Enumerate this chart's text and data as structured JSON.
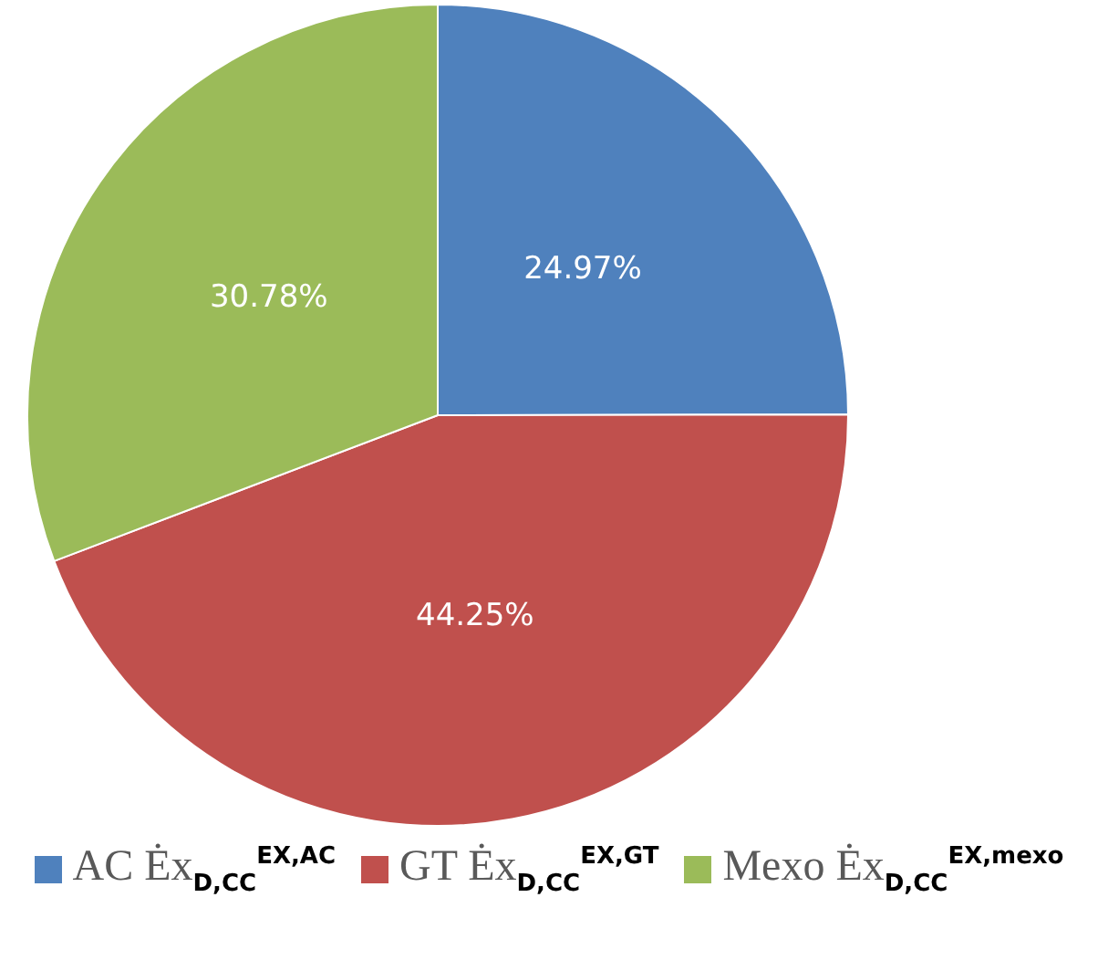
{
  "chart_data": {
    "type": "pie",
    "categories": [
      "AC Ėx$_{D,CC}$$^{EX,AC}$",
      "GT Ėx$_{D,CC}$$^{EX,GT}$",
      "Mexo Ėx$_{D,CC}$$^{EX,mexo}$"
    ],
    "values": [
      24.97,
      44.25,
      30.78
    ],
    "colors": [
      "#4f81bd",
      "#c0504d",
      "#9bbb59"
    ],
    "value_labels": [
      "24.97%",
      "44.25%",
      "30.78%"
    ],
    "legend": "bottom"
  }
}
